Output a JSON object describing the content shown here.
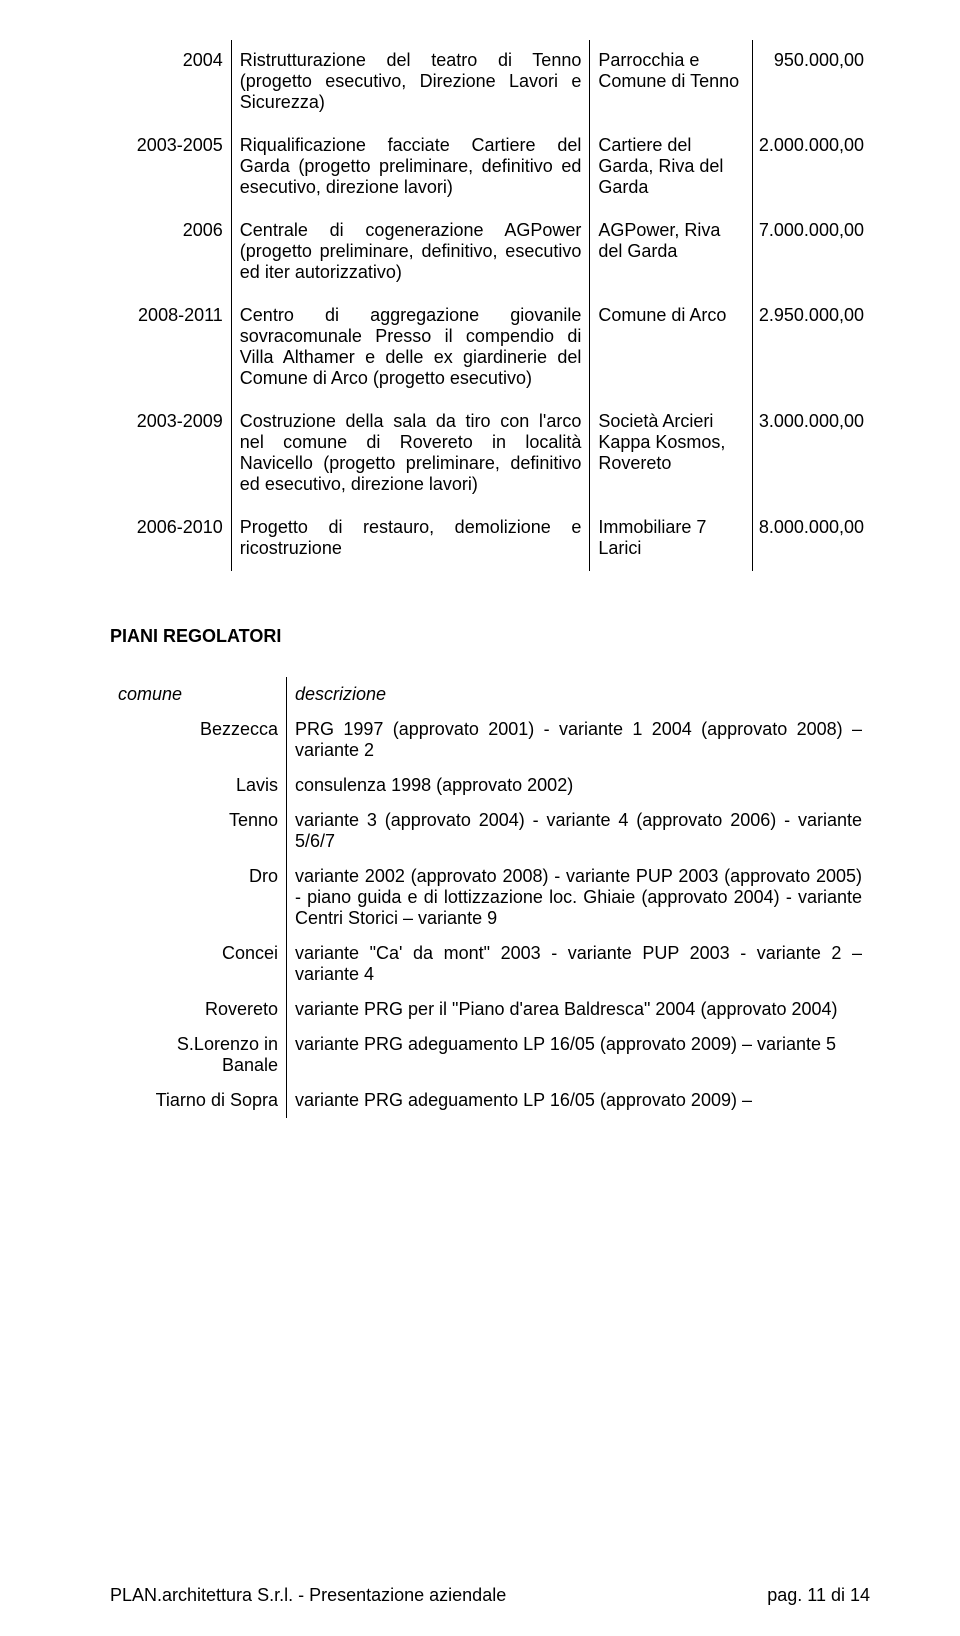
{
  "table1": {
    "rows": [
      {
        "year": "2004",
        "desc": "Ristrutturazione del teatro di Tenno (progetto esecutivo, Direzione Lavori e Sicurezza)",
        "client": "Parrocchia e Comune di Tenno",
        "amount": "950.000,00"
      },
      {
        "year": "2003-2005",
        "desc": "Riqualificazione facciate Cartiere del Garda (progetto preliminare, definitivo ed esecutivo, direzione lavori)",
        "client": "Cartiere del Garda, Riva del Garda",
        "amount": "2.000.000,00"
      },
      {
        "year": "2006",
        "desc": "Centrale di cogenerazione AGPower (progetto preliminare, definitivo, esecutivo ed iter autorizzativo)",
        "client": "AGPower, Riva del Garda",
        "amount": "7.000.000,00"
      },
      {
        "year": "2008-2011",
        "desc": "Centro di aggregazione giovanile sovracomunale Presso il compendio di Villa Althamer e delle ex giardinerie del Comune di Arco (progetto esecutivo)",
        "client": "Comune di Arco",
        "amount": "2.950.000,00"
      },
      {
        "year": "2003-2009",
        "desc": "Costruzione della sala da tiro con l'arco nel comune di Rovereto in località Navicello (progetto preliminare, definitivo ed esecutivo, direzione lavori)",
        "client": "Società Arcieri Kappa Kosmos, Rovereto",
        "amount": "3.000.000,00"
      },
      {
        "year": "2006-2010",
        "desc": "Progetto di restauro, demolizione e ricostruzione",
        "client": "Immobiliare 7 Larici",
        "amount": "8.000.000,00"
      }
    ]
  },
  "section_title": "PIANI REGOLATORI",
  "table2": {
    "head": {
      "comune": "comune",
      "desc": "descrizione"
    },
    "rows": [
      {
        "comune": "Bezzecca",
        "desc": "PRG 1997 (approvato 2001) - variante 1 2004 (approvato 2008) – variante 2"
      },
      {
        "comune": "Lavis",
        "desc": "consulenza 1998 (approvato 2002)"
      },
      {
        "comune": "Tenno",
        "desc": "variante 3 (approvato 2004) - variante 4  (approvato 2006) - variante 5/6/7"
      },
      {
        "comune": "Dro",
        "desc": "variante 2002 (approvato 2008) - variante PUP 2003 (approvato 2005) - piano guida e di lottizzazione loc. Ghiaie  (approvato 2004) - variante Centri Storici – variante 9"
      },
      {
        "comune": "Concei",
        "desc": "variante \"Ca' da mont\" 2003 - variante PUP 2003 - variante 2 – variante 4"
      },
      {
        "comune": "Rovereto",
        "desc": "variante PRG per il \"Piano d'area Baldresca\" 2004 (approvato 2004)"
      },
      {
        "comune": "S.Lorenzo in Banale",
        "desc": "variante PRG adeguamento LP 16/05 (approvato 2009) – variante 5"
      },
      {
        "comune": "Tiarno di Sopra",
        "desc": "variante PRG adeguamento LP 16/05 (approvato 2009) –"
      }
    ]
  },
  "footer": {
    "left": "PLAN.architettura S.r.l. - Presentazione aziendale",
    "right": "pag. 11 di 14"
  }
}
